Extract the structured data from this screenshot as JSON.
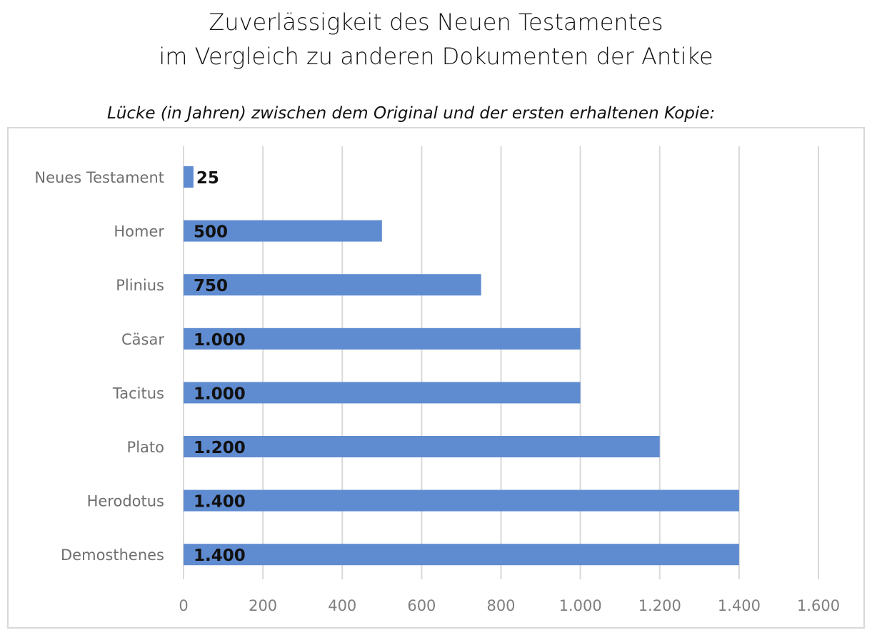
{
  "chart_data": {
    "type": "bar",
    "orientation": "horizontal",
    "title": [
      "Zuverlässigkeit des Neuen Testamentes",
      "im Vergleich zu anderen Dokumenten der Antike"
    ],
    "subtitle": "Lücke (in Jahren) zwischen dem Original und der ersten erhaltenen Kopie:",
    "categories": [
      "Neues Testament",
      "Homer",
      "Plinius",
      "Cäsar",
      "Tacitus",
      "Plato",
      "Herodotus",
      "Demosthenes"
    ],
    "values": [
      25,
      500,
      750,
      1000,
      1000,
      1200,
      1400,
      1400
    ],
    "data_labels": [
      "25",
      "500",
      "750",
      "1.000",
      "1.000",
      "1.200",
      "1.400",
      "1.400"
    ],
    "xlim": [
      0,
      1600
    ],
    "xticks": [
      0,
      200,
      400,
      600,
      800,
      1000,
      1200,
      1400,
      1600
    ],
    "xtick_labels": [
      "0",
      "200",
      "400",
      "600",
      "800",
      "1.000",
      "1.200",
      "1.400",
      "1.600"
    ],
    "grid": true,
    "bar_color": "#5f8bd0",
    "xlabel": "",
    "ylabel": ""
  }
}
